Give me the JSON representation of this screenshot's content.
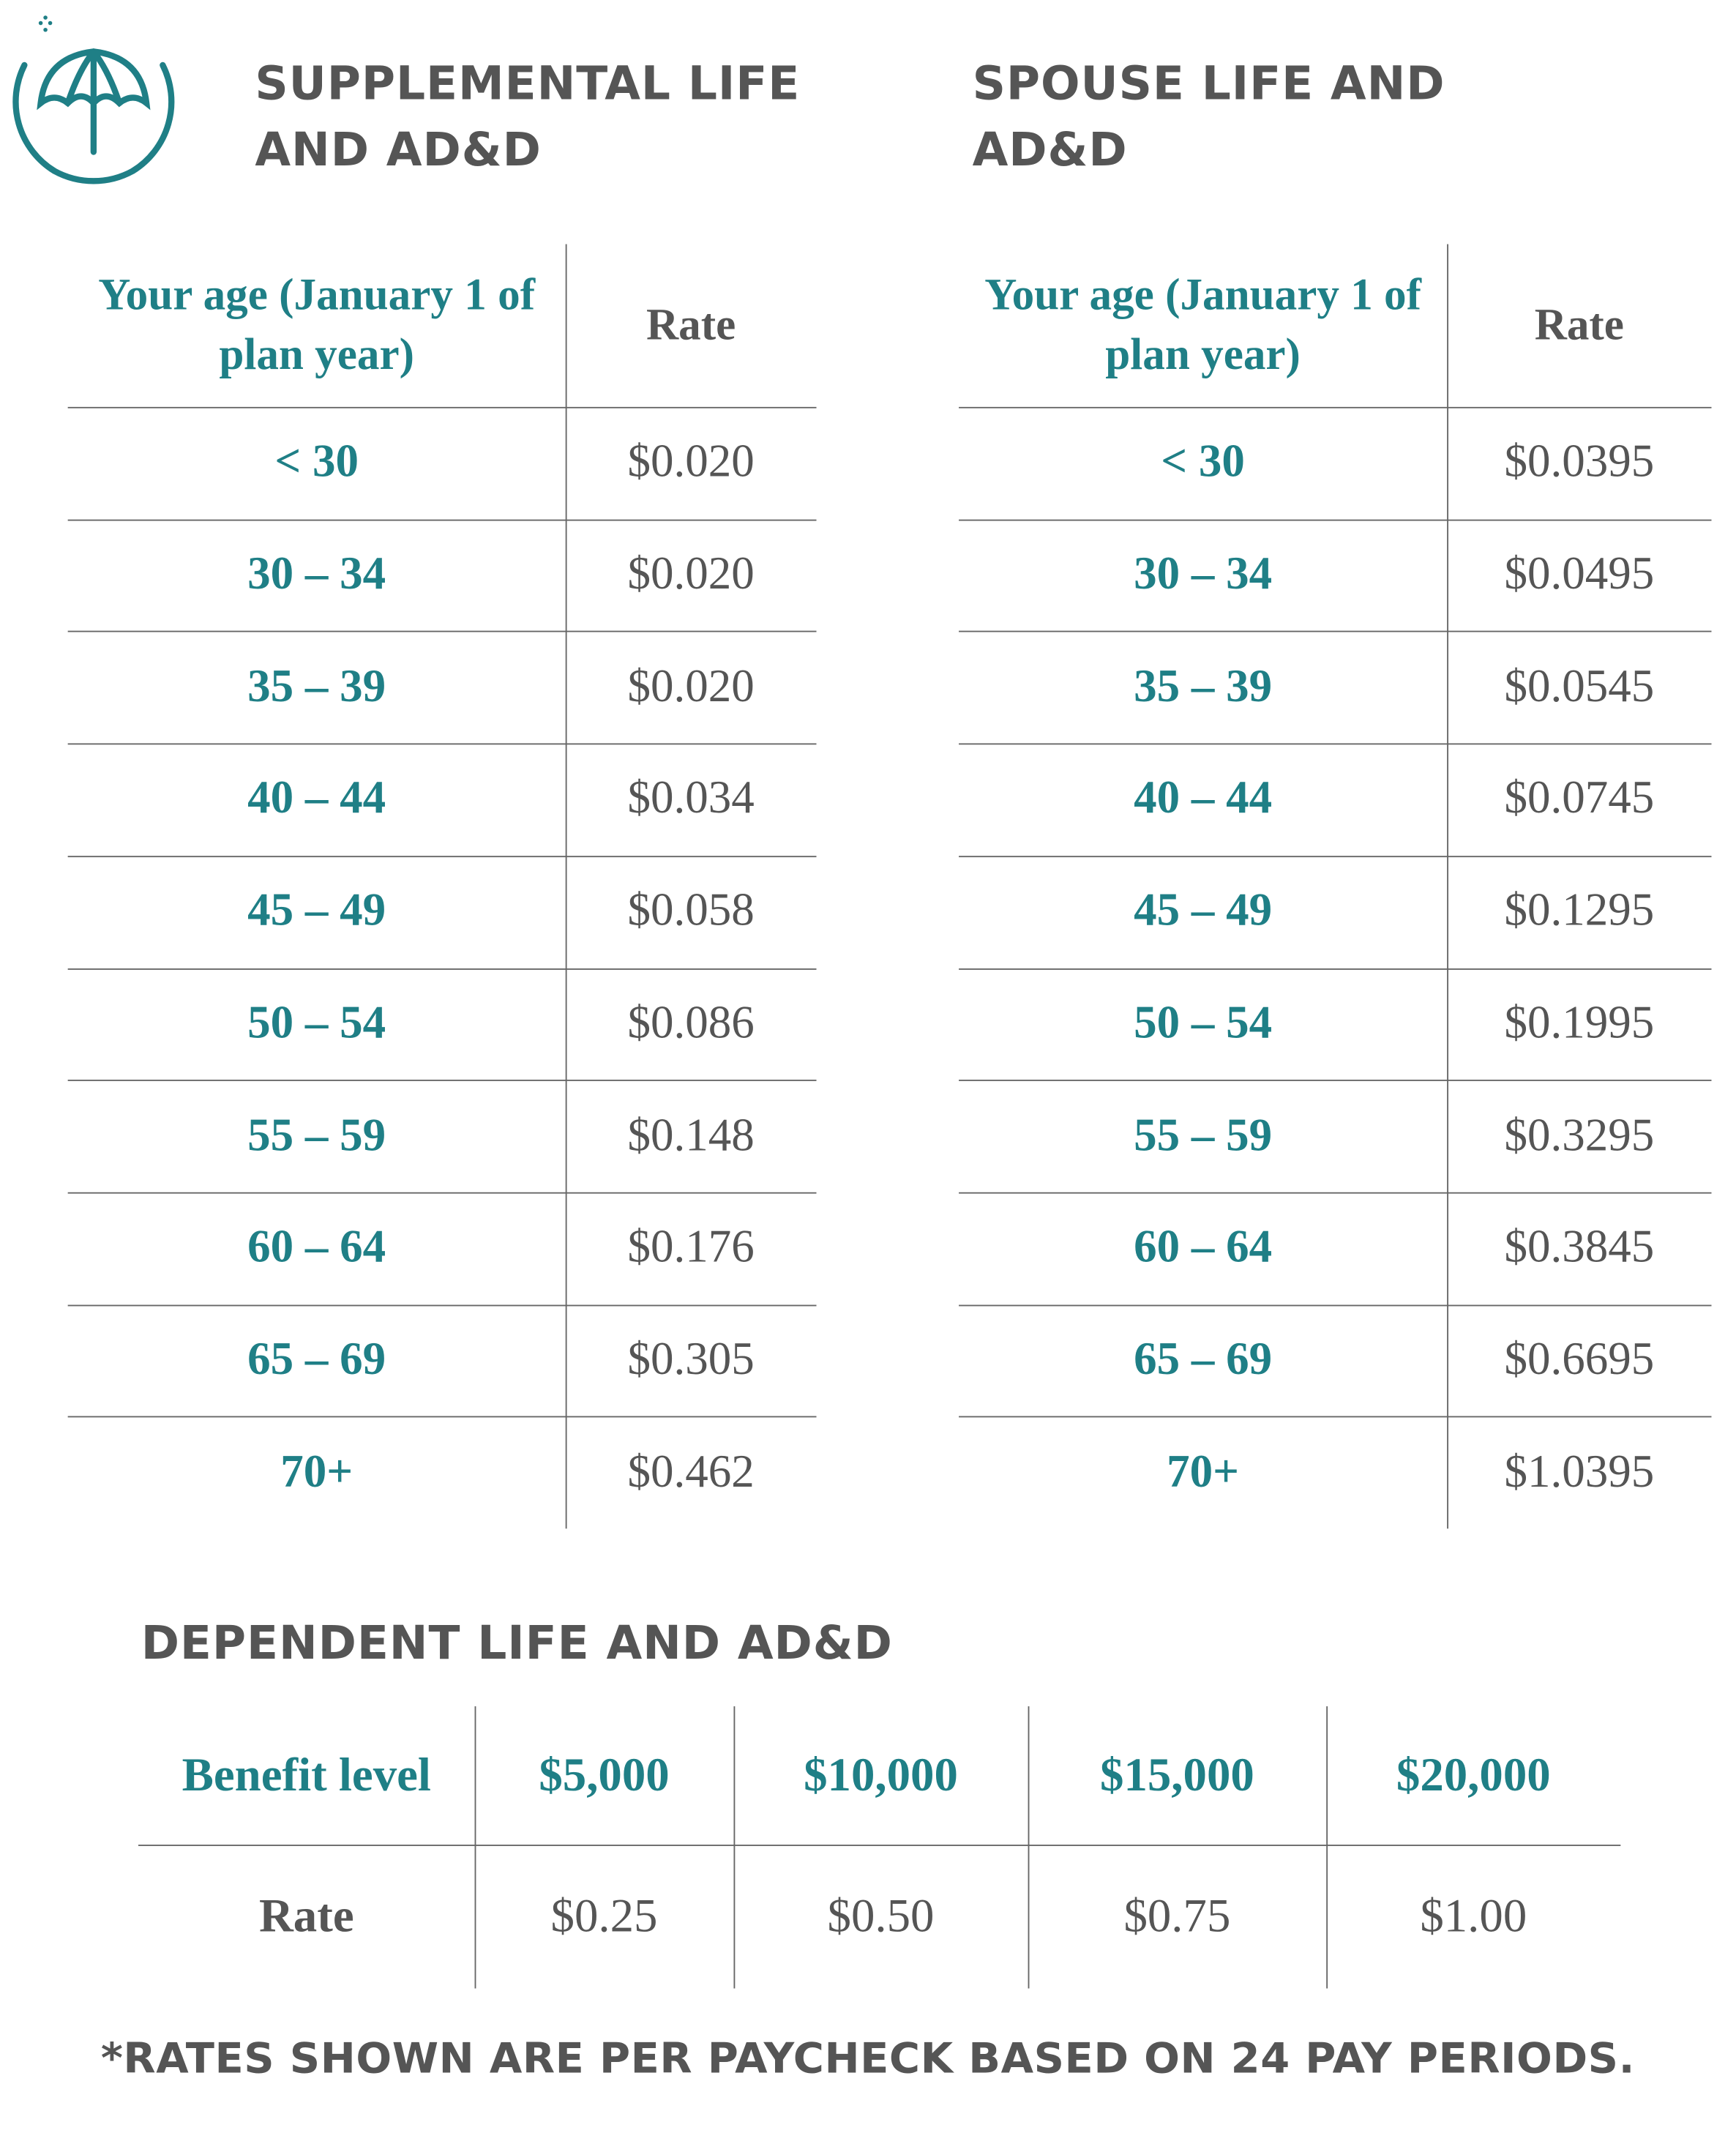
{
  "sections": [
    {
      "title": "SUPPLEMENTAL LIFE AND AD&D",
      "table": {
        "header": [
          "Your age (January 1 of plan year)",
          "Rate"
        ],
        "rows": [
          [
            "< 30",
            "$0.020"
          ],
          [
            "30 – 34",
            "$0.020"
          ],
          [
            "35 – 39",
            "$0.020"
          ],
          [
            "40 – 44",
            "$0.034"
          ],
          [
            "45 – 49",
            "$0.058"
          ],
          [
            "50 – 54",
            "$0.086"
          ],
          [
            "55 – 59",
            "$0.148"
          ],
          [
            "60 – 64",
            "$0.176"
          ],
          [
            "65 – 69",
            "$0.305"
          ],
          [
            "70+",
            "$0.462"
          ]
        ]
      }
    },
    {
      "title": "SPOUSE LIFE AND AD&D",
      "table": {
        "header": [
          "Your age (January 1 of plan year)",
          "Rate"
        ],
        "rows": [
          [
            "< 30",
            "$0.0395"
          ],
          [
            "30 – 34",
            "$0.0495"
          ],
          [
            "35 – 39",
            "$0.0545"
          ],
          [
            "40 – 44",
            "$0.0745"
          ],
          [
            "45 – 49",
            "$0.1295"
          ],
          [
            "50 – 54",
            "$0.1995"
          ],
          [
            "55 – 59",
            "$0.3295"
          ],
          [
            "60 – 64",
            "$0.3845"
          ],
          [
            "65 – 69",
            "$0.6695"
          ],
          [
            "70+",
            "$1.0395"
          ]
        ]
      }
    }
  ],
  "dependent": {
    "title": "DEPENDENT LIFE AND AD&D",
    "table": {
      "rows": [
        [
          "Benefit level",
          "$5,000",
          "$10,000",
          "$15,000",
          "$20,000"
        ],
        [
          "Rate",
          "$0.25",
          "$0.50",
          "$0.75",
          "$1.00"
        ]
      ]
    }
  },
  "footnote": "*RATES SHOWN ARE PER PAYCHECK BASED ON 24 PAY PERIODS."
}
